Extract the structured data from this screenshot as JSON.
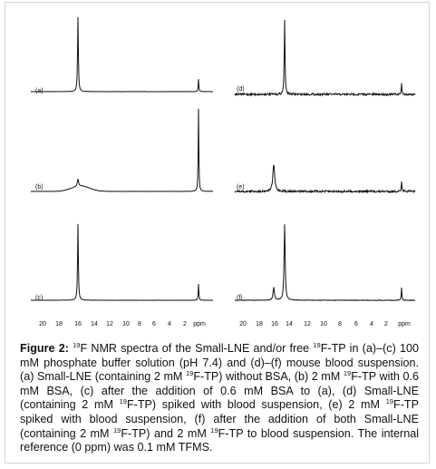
{
  "figure": {
    "panels": [
      {
        "label": "(a)"
      },
      {
        "label": "(b)"
      },
      {
        "label": "(c)"
      },
      {
        "label": "(d)"
      },
      {
        "label": "(e)"
      },
      {
        "label": "(f)"
      }
    ],
    "left_axis": {
      "ticks": [
        "20",
        "18",
        "16",
        "14",
        "12",
        "10",
        "8",
        "6",
        "4",
        "2"
      ],
      "unit": "ppm"
    },
    "right_axis": {
      "ticks": [
        "20",
        "18",
        "16",
        "14",
        "12",
        "10",
        "8",
        "6",
        "4",
        "2"
      ],
      "unit": "ppm"
    },
    "caption": {
      "label": "Figure 2:",
      "runs": [
        {
          "text": " "
        },
        {
          "sup": "19"
        },
        {
          "text": "F NMR spectra of the Small-LNE and/or free "
        },
        {
          "sup": "19"
        },
        {
          "text": "F-TP in (a)–(c) 100 mM phosphate buffer solution (pH 7.4) and (d)–(f) mouse blood suspension. (a) Small-LNE (containing 2 mM "
        },
        {
          "sup": "19"
        },
        {
          "text": "F-TP) without BSA, (b) 2 mM "
        },
        {
          "sup": "19"
        },
        {
          "text": "F-TP with 0.6 mM BSA, (c) after the addition of 0.6 mM BSA to (a), (d) Small-LNE (containing 2 mM "
        },
        {
          "sup": "19"
        },
        {
          "text": "F-TP) spiked with blood suspension, (e) 2 mM "
        },
        {
          "sup": "19"
        },
        {
          "text": "F-TP spiked with blood suspension, (f) after the addition of both Small-LNE (containing 2 mM "
        },
        {
          "sup": "19"
        },
        {
          "text": "F-TP) and 2 mM "
        },
        {
          "sup": "19"
        },
        {
          "text": "F-TP to blood suspension. The internal reference (0 ppm) was 0.1 mM TFMS."
        }
      ]
    }
  }
}
